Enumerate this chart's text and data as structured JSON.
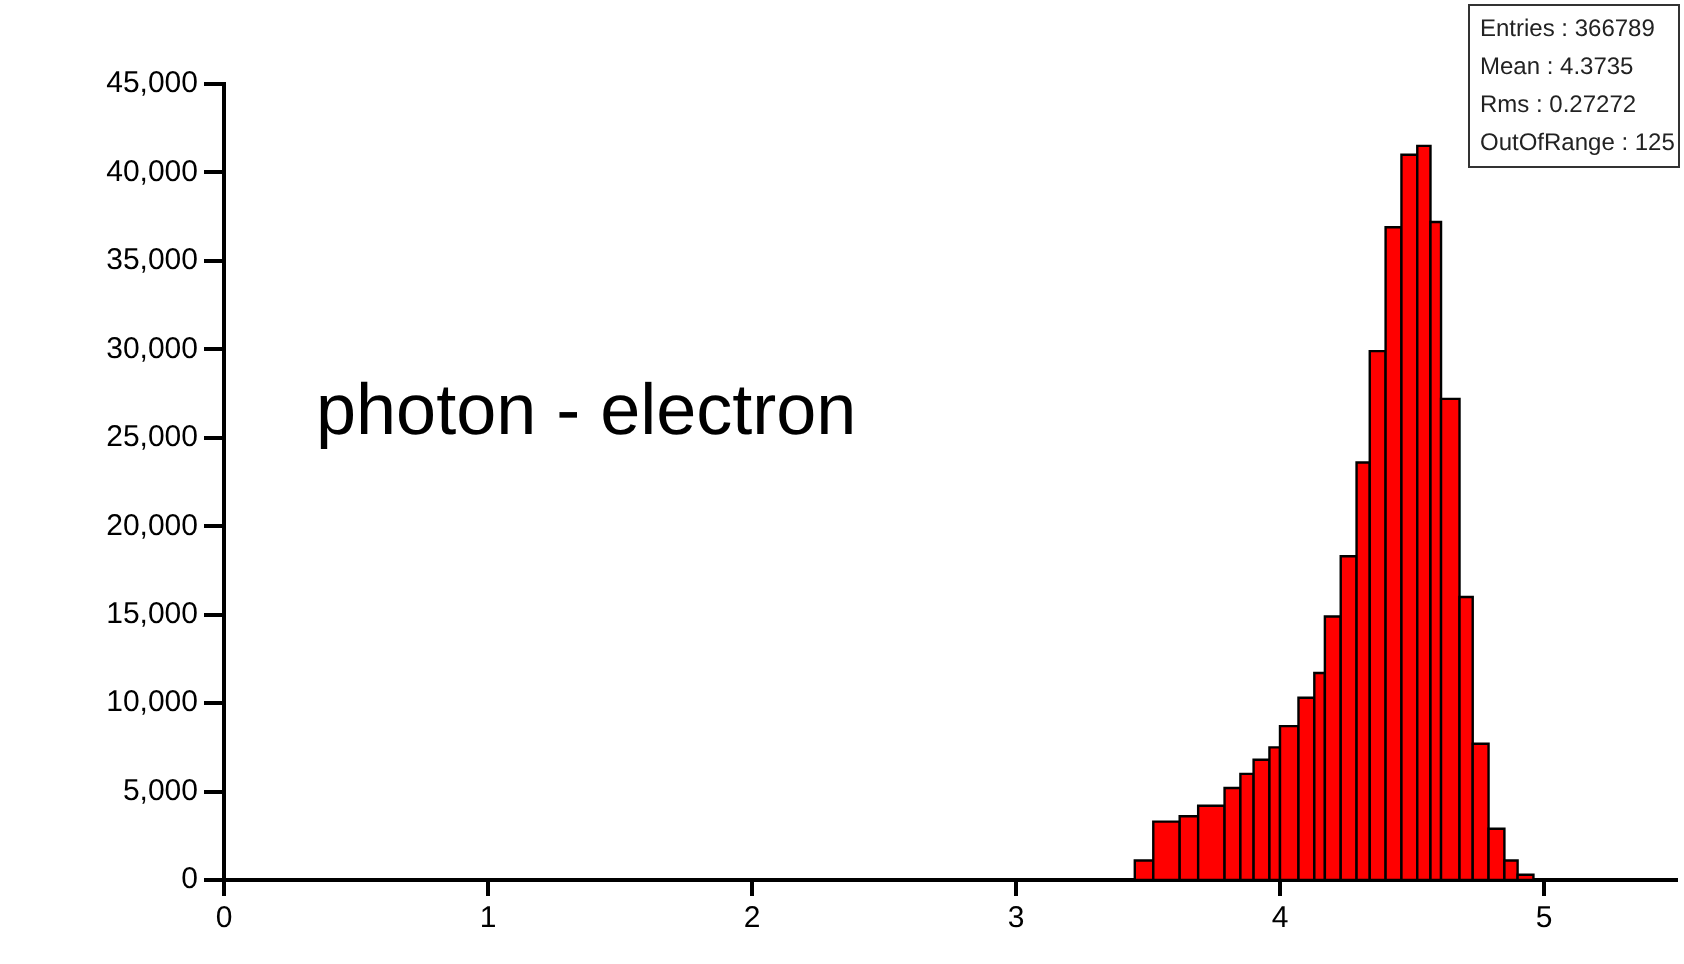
{
  "chart_data": {
    "type": "histogram",
    "title": "photon - electron",
    "annotations": [
      "Entries :   366789",
      "Mean :          4.3735",
      "Rms :           0.27272",
      "OutOfRange : 125"
    ],
    "bins": [
      3.45,
      3.52,
      3.62,
      3.69,
      3.79,
      3.85,
      3.9,
      3.96,
      4.0,
      4.07,
      4.13,
      4.17,
      4.23,
      4.29,
      4.34,
      4.4,
      4.46,
      4.52,
      4.57,
      4.61,
      4.68,
      4.73,
      4.79,
      4.85,
      4.9,
      4.96
    ],
    "values": [
      1100,
      3300,
      3600,
      4200,
      5200,
      6000,
      6800,
      7500,
      8700,
      10300,
      11700,
      14900,
      18300,
      23600,
      29900,
      36900,
      41000,
      41500,
      37200,
      27200,
      16000,
      7700,
      2900,
      1100,
      300
    ],
    "color": "#ff0000",
    "xlim": [
      0,
      5.5
    ],
    "xticks": [
      0,
      1,
      2,
      3,
      4,
      5
    ],
    "ylim": [
      0,
      45000
    ],
    "yticks": [
      {
        "value": 0,
        "label": "0"
      },
      {
        "value": 5000,
        "label": "5,000"
      },
      {
        "value": 10000,
        "label": "10,000"
      },
      {
        "value": 15000,
        "label": "15,000"
      },
      {
        "value": 20000,
        "label": "20,000"
      },
      {
        "value": 25000,
        "label": "25,000"
      },
      {
        "value": 30000,
        "label": "30,000"
      },
      {
        "value": 35000,
        "label": "35,000"
      },
      {
        "value": 40000,
        "label": "40,000"
      },
      {
        "value": 45000,
        "label": "45,000"
      }
    ],
    "grid": false,
    "legend": false
  }
}
